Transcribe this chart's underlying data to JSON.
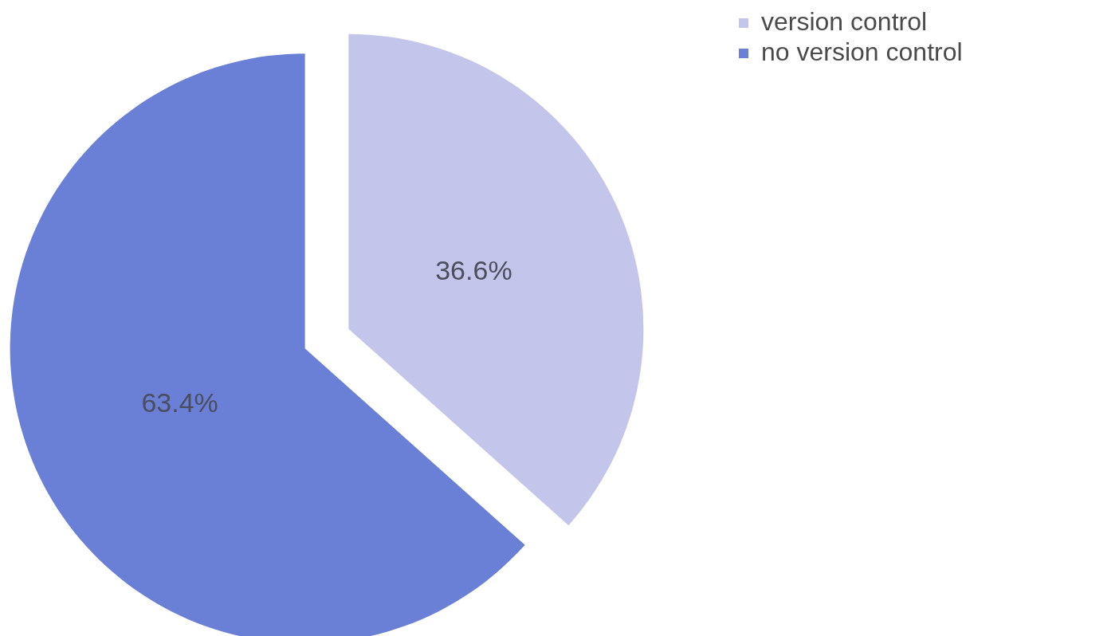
{
  "chart_data": {
    "type": "pie",
    "categories": [
      "version control",
      "no version control"
    ],
    "values": [
      36.6,
      63.4
    ],
    "colors": [
      "#c4c5ea",
      "#6a7fd6"
    ],
    "value_labels": [
      "36.6%",
      "63.4%"
    ],
    "legend": "top right"
  }
}
